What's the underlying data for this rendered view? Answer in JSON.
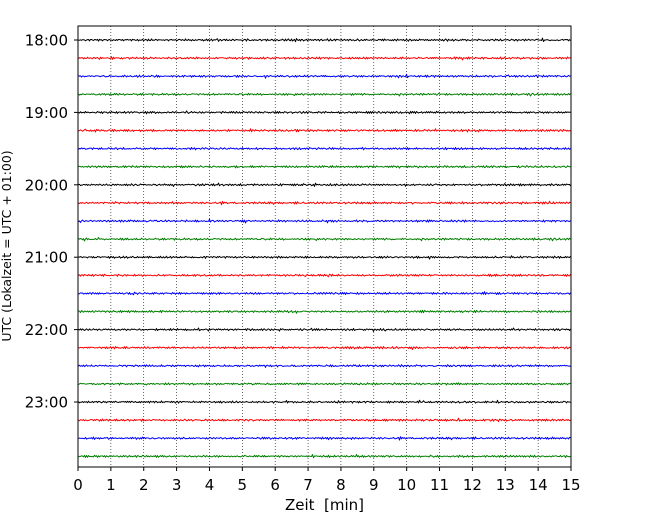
{
  "chart_data": {
    "type": "line",
    "title": "",
    "xlabel": "Zeit  [min]",
    "ylabel": "UTC (Lokalzeit = UTC + 01:00)",
    "xlim": [
      0,
      15
    ],
    "x_ticks": [
      "0",
      "1",
      "2",
      "3",
      "4",
      "5",
      "6",
      "7",
      "8",
      "9",
      "10",
      "11",
      "12",
      "13",
      "14",
      "15"
    ],
    "y_ticks": [
      "18:00",
      "19:00",
      "20:00",
      "21:00",
      "22:00",
      "23:00"
    ],
    "grid": "vertical dotted lines at each minute",
    "trace_colors": [
      "#000000",
      "#ff0000",
      "#0000ff",
      "#008000"
    ],
    "series": [
      {
        "start": "18:00",
        "color": "#000000"
      },
      {
        "start": "18:15",
        "color": "#ff0000"
      },
      {
        "start": "18:30",
        "color": "#0000ff"
      },
      {
        "start": "18:45",
        "color": "#008000"
      },
      {
        "start": "19:00",
        "color": "#000000"
      },
      {
        "start": "19:15",
        "color": "#ff0000"
      },
      {
        "start": "19:30",
        "color": "#0000ff"
      },
      {
        "start": "19:45",
        "color": "#008000"
      },
      {
        "start": "20:00",
        "color": "#000000"
      },
      {
        "start": "20:15",
        "color": "#ff0000"
      },
      {
        "start": "20:30",
        "color": "#0000ff"
      },
      {
        "start": "20:45",
        "color": "#008000"
      },
      {
        "start": "21:00",
        "color": "#000000"
      },
      {
        "start": "21:15",
        "color": "#ff0000"
      },
      {
        "start": "21:30",
        "color": "#0000ff"
      },
      {
        "start": "21:45",
        "color": "#008000"
      },
      {
        "start": "22:00",
        "color": "#000000"
      },
      {
        "start": "22:15",
        "color": "#ff0000"
      },
      {
        "start": "22:30",
        "color": "#0000ff"
      },
      {
        "start": "22:45",
        "color": "#008000"
      },
      {
        "start": "23:00",
        "color": "#000000"
      },
      {
        "start": "23:15",
        "color": "#ff0000"
      },
      {
        "start": "23:30",
        "color": "#0000ff"
      },
      {
        "start": "23:45",
        "color": "#008000"
      }
    ]
  }
}
